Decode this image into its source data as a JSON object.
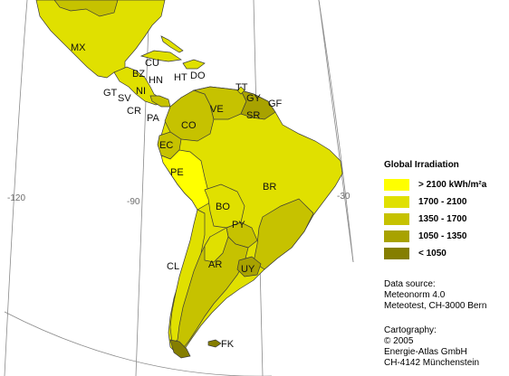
{
  "legend": {
    "title": "Global Irradiation",
    "items": [
      {
        "label": "> 2100 kWh/m²a",
        "color": "#ffff00"
      },
      {
        "label": "1700 - 2100",
        "color": "#e0e000"
      },
      {
        "label": "1350 - 1700",
        "color": "#c6c200"
      },
      {
        "label": "1050 - 1350",
        "color": "#a8a200"
      },
      {
        "label": "< 1050",
        "color": "#857e00"
      }
    ]
  },
  "data_source": {
    "heading": "Data source:",
    "lines": [
      "Meteonorm 4.0",
      "Meteotest, CH-3000 Bern"
    ]
  },
  "cartography": {
    "heading": "Cartography:",
    "lines": [
      "© 2005",
      "Energie-Atlas GmbH",
      "CH-4142 Münchenstein"
    ]
  },
  "longitude_labels": {
    "lon_120": "-120",
    "lon_90": "-90",
    "lon_30": "-30"
  },
  "country_labels": {
    "MX": "MX",
    "CU": "CU",
    "BZ": "BZ",
    "GT": "GT",
    "HN": "HN",
    "SV": "SV",
    "NI": "NI",
    "CR": "CR",
    "PA": "PA",
    "HT": "HT",
    "DO": "DO",
    "TT": "TT",
    "GY": "GY",
    "GF": "GF",
    "SR": "SR",
    "VE": "VE",
    "CO": "CO",
    "EC": "EC",
    "PE": "PE",
    "BR": "BR",
    "BO": "BO",
    "PY": "PY",
    "AR": "AR",
    "UY": "UY",
    "CL": "CL",
    "FK": "FK"
  }
}
